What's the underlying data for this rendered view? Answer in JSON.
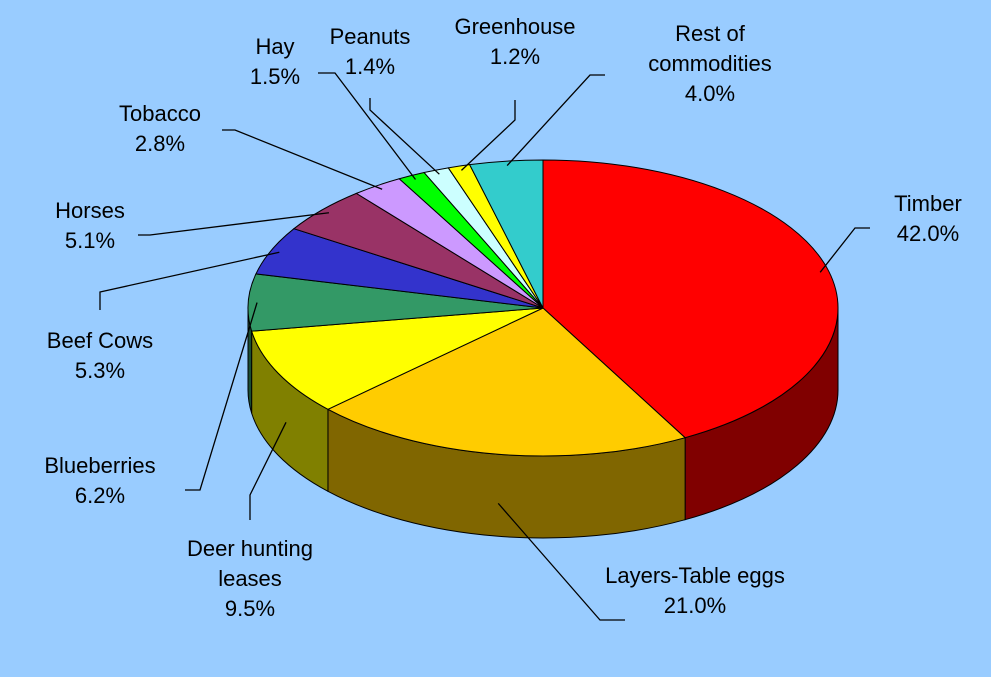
{
  "chart_data": {
    "type": "pie",
    "categories": [
      "Timber",
      "Layers-Table eggs",
      "Deer hunting leases",
      "Blueberries",
      "Beef Cows",
      "Horses",
      "Tobacco",
      "Hay",
      "Peanuts",
      "Greenhouse",
      "Rest of commodities"
    ],
    "values": [
      42.0,
      21.0,
      9.5,
      6.2,
      5.3,
      5.1,
      2.8,
      1.5,
      1.4,
      1.2,
      4.0
    ],
    "value_labels": [
      "42.0%",
      "21.0%",
      "9.5%",
      "6.2%",
      "5.3%",
      "5.1%",
      "2.8%",
      "1.5%",
      "1.4%",
      "1.2%",
      "4.0%"
    ],
    "colors": [
      "#ff0000",
      "#ffcc00",
      "#ffff00",
      "#339966",
      "#3333cc",
      "#993366",
      "#cc99ff",
      "#00ff00",
      "#ccffff",
      "#ffff00",
      "#33cccc"
    ]
  }
}
